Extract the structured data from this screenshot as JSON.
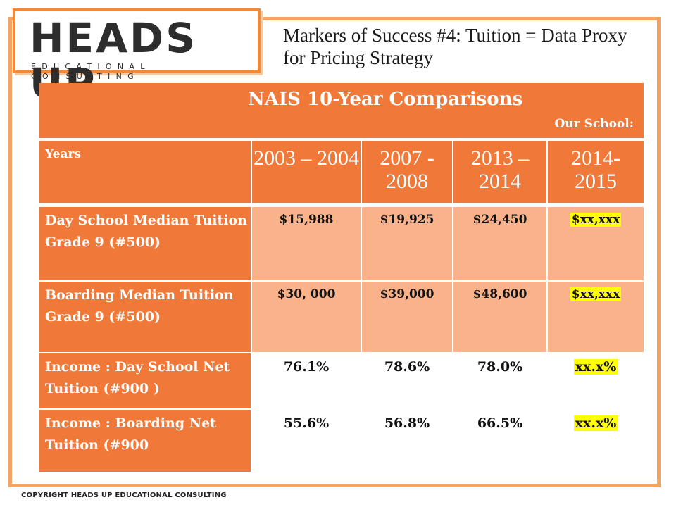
{
  "logo": {
    "main": "HEADS UP",
    "sub": "EDUCATIONAL CONSULTING"
  },
  "slide_title": "Markers of Success #4: Tuition = Data Proxy for Pricing Strategy",
  "table": {
    "title": "NAIS 10-Year Comparisons",
    "subtitle": "Our  School:",
    "years_label": "Years",
    "years": [
      "2003 – 2004",
      "2007 - 2008",
      "2013 – 2014",
      "2014- 2015"
    ],
    "rows": [
      {
        "label": "Day School Median Tuition Grade 9 (#500)",
        "values": [
          "$15,988",
          "$19,925",
          "$24,450",
          "$xx,xxx"
        ]
      },
      {
        "label": "Boarding Median Tuition Grade 9 (#500)",
        "values": [
          "$30, 000",
          "$39,000",
          "$48,600",
          "$xx,xxx"
        ]
      },
      {
        "label": "Income : Day School Net Tuition (#900 )",
        "values": [
          "76.1%",
          "78.6%",
          "78.0%",
          "xx.x%"
        ]
      },
      {
        "label": "Income : Boarding Net Tuition  (#900",
        "values": [
          "55.6%",
          "56.8%",
          "66.5%",
          "xx.x%"
        ]
      }
    ]
  },
  "footer": "COPYRIGHT HEADS UP EDUCATIONAL CONSULTING",
  "colors": {
    "orange": "#f0793a",
    "peach": "#f9b28a",
    "highlight": "#ffff00",
    "frame": "#f4a460"
  }
}
